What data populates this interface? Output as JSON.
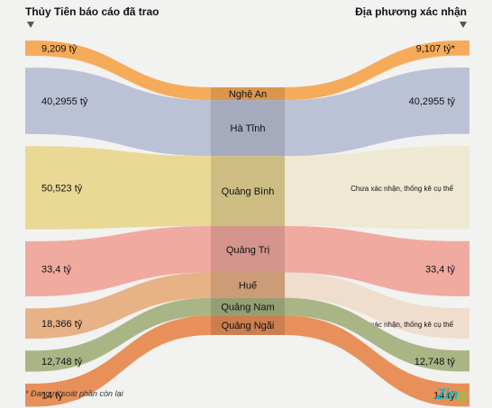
{
  "header": {
    "left_title": "Thủy Tiên báo cáo đã trao",
    "right_title": "Địa phương xác nhận"
  },
  "footnote": "* Đang rà soát phần còn lại",
  "logo": {
    "part1": "Zin",
    "part2": "g"
  },
  "chart_data": {
    "type": "sankey",
    "title": "",
    "left_label": "Thủy Tiên báo cáo đã trao",
    "right_label": "Địa phương xác nhận",
    "unit": "tỷ",
    "nodes": [
      {
        "name": "Nghệ An",
        "reported": 9.209,
        "reported_label": "9,209 tỷ",
        "confirmed": 9.107,
        "confirmed_label": "9,107 tỷ*",
        "color": "#f6ab5b"
      },
      {
        "name": "Hà Tĩnh",
        "reported": 40.2955,
        "reported_label": "40,2955 tỷ",
        "confirmed": 40.2955,
        "confirmed_label": "40,2955 tỷ",
        "color": "#bcc2d6"
      },
      {
        "name": "Quảng Bình",
        "reported": 50.523,
        "reported_label": "50,523 tỷ",
        "confirmed": null,
        "confirmed_label": "Chưa xác nhận, thống kê cụ thể",
        "color": "#ead895"
      },
      {
        "name": "Quảng Trị",
        "reported": 33.4,
        "reported_label": "33,4 tỷ",
        "confirmed": 33.4,
        "confirmed_label": "33,4 tỷ",
        "color": "#f1aaa0"
      },
      {
        "name": "Huế",
        "reported": 18.366,
        "reported_label": "18,366 tỷ",
        "confirmed": null,
        "confirmed_label": "Chưa xác nhận, thống kê cụ thể",
        "color": "#e8b287"
      },
      {
        "name": "Quảng Nam",
        "reported": 12.748,
        "reported_label": "12,748 tỷ",
        "confirmed": 12.748,
        "confirmed_label": "12,748 tỷ",
        "color": "#aab585"
      },
      {
        "name": "Quảng Ngãi",
        "reported": 14,
        "reported_label": "14 tỷ",
        "confirmed": 14,
        "confirmed_label": "14 tỷ",
        "color": "#e8905a"
      }
    ]
  }
}
